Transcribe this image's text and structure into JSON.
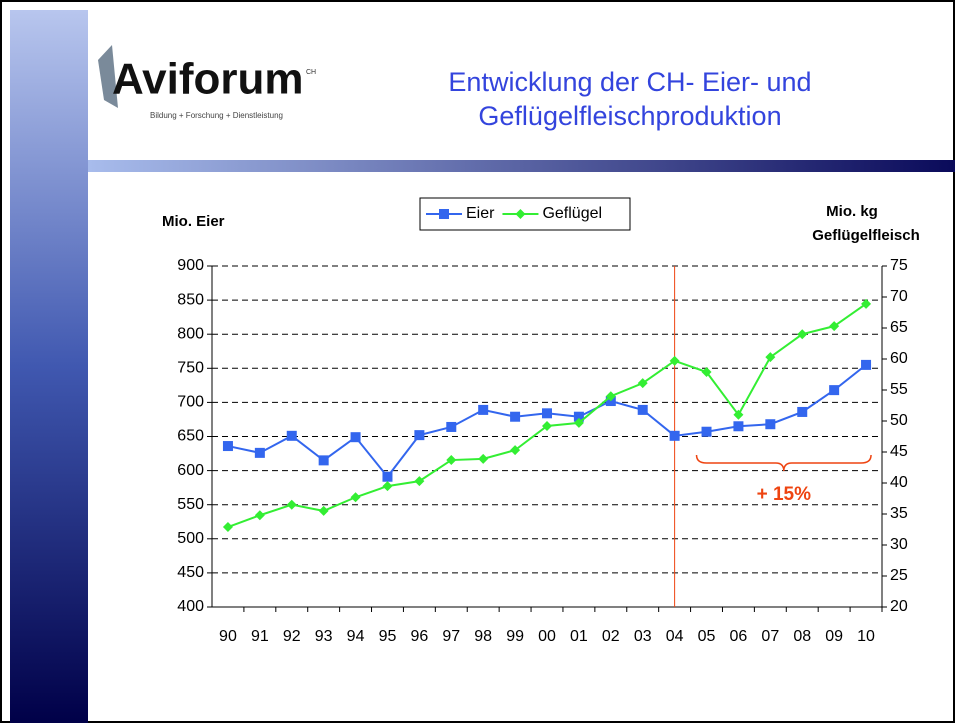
{
  "header": {
    "logo": "Aviforum",
    "logo_mark": "CH",
    "logo_subtitle": "Bildung + Forschung + Dienstleistung"
  },
  "chart_data": {
    "type": "line",
    "title": [
      "Entwicklung der CH- Eier- und",
      "Geflügelfleischproduktion"
    ],
    "y_label": "Mio. Eier",
    "y2_label": [
      "Mio. kg",
      "Geflügelfleisch"
    ],
    "categories": [
      "90",
      "91",
      "92",
      "93",
      "94",
      "95",
      "96",
      "97",
      "98",
      "99",
      "00",
      "01",
      "02",
      "03",
      "04",
      "05",
      "06",
      "07",
      "08",
      "09",
      "10"
    ],
    "series": [
      {
        "name": "Eier",
        "color": "#3366ee",
        "marker": "square",
        "values": [
          636,
          626,
          651,
          615,
          649,
          591,
          652,
          664,
          689,
          679,
          684,
          679,
          702,
          689,
          651,
          657,
          665,
          668,
          686,
          718,
          755
        ]
      },
      {
        "name": "Geflügel",
        "color": "#33ee33",
        "marker": "diamond",
        "axis": "y2",
        "values": [
          32.9,
          34.8,
          36.5,
          35.5,
          37.7,
          39.5,
          40.3,
          43.7,
          43.9,
          45.3,
          49.2,
          49.7,
          54,
          56.1,
          59.7,
          57.9,
          51,
          60.3,
          64,
          65.3,
          68.9
        ]
      }
    ],
    "ylim": [
      400,
      900
    ],
    "yticks": [
      400,
      450,
      500,
      550,
      600,
      650,
      700,
      750,
      800,
      850,
      900
    ],
    "y2lim": [
      20,
      75
    ],
    "y2ticks": [
      20,
      25,
      30,
      35,
      40,
      45,
      50,
      55,
      60,
      65,
      70,
      75
    ],
    "grid": true,
    "legend": "top",
    "vline": "04",
    "annotations": [
      {
        "text": "+ 15%",
        "from": "05",
        "to": "10",
        "color": "#ee4411"
      }
    ]
  }
}
